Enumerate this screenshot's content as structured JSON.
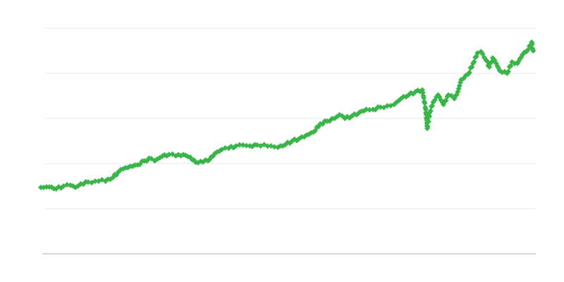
{
  "chart_data": {
    "type": "line",
    "title": "",
    "xlabel": "",
    "ylabel": "",
    "xlim": [
      0,
      100
    ],
    "ylim": [
      0,
      5
    ],
    "grid": true,
    "gridlines_y": [
      1,
      2,
      3,
      4,
      5
    ],
    "tick_labels_shown": false,
    "legend": "none",
    "marker": "diamond",
    "colors": {
      "series": "#39b54a",
      "grid": "#ebebeb",
      "axis": "#b3b3b3"
    },
    "series": [
      {
        "x": [
          0,
          1.7,
          3.1,
          4.6,
          6,
          7,
          8.1,
          9.6,
          11,
          12.4,
          13.1,
          14.6,
          15.7,
          16.7,
          18.1,
          19.6,
          21,
          22.4,
          23.1,
          24.6,
          26,
          27.4,
          28.9,
          30.3,
          31.4,
          32.4,
          33.9,
          35.3,
          36.7,
          38.1,
          39.6,
          41,
          42.4,
          43.9,
          45.3,
          46.7,
          48.1,
          49.6,
          51,
          52.4,
          53.9,
          55.3,
          56.7,
          58.1,
          59.6,
          60.6,
          61.7,
          63.1,
          64.6,
          66,
          67.4,
          68.9,
          70.3,
          71.7,
          73.1,
          74.6,
          76,
          77.4,
          78.1,
          78.4,
          78.9,
          79.6,
          80.6,
          81.7,
          82.7,
          83.9,
          84.6,
          85.3,
          86.7,
          87.7,
          88.6,
          89.3,
          90.3,
          91,
          91.7,
          92.4,
          93.1,
          94.6,
          95.6,
          96.7,
          97.7,
          98.9,
          99.6,
          99.9
        ],
        "y": [
          1.47,
          1.48,
          1.44,
          1.5,
          1.52,
          1.47,
          1.55,
          1.59,
          1.61,
          1.64,
          1.61,
          1.69,
          1.81,
          1.88,
          1.94,
          1.97,
          2.06,
          2.11,
          2.06,
          2.16,
          2.2,
          2.17,
          2.2,
          2.14,
          2.03,
          2.05,
          2.06,
          2.22,
          2.31,
          2.34,
          2.39,
          2.41,
          2.39,
          2.41,
          2.42,
          2.39,
          2.36,
          2.42,
          2.5,
          2.55,
          2.63,
          2.7,
          2.88,
          2.94,
          3.0,
          3.08,
          3.0,
          3.05,
          3.13,
          3.2,
          3.2,
          3.25,
          3.28,
          3.31,
          3.44,
          3.52,
          3.59,
          3.63,
          3.2,
          2.78,
          3.13,
          3.36,
          3.52,
          3.31,
          3.52,
          3.44,
          3.59,
          3.86,
          3.98,
          4.22,
          4.45,
          4.48,
          4.3,
          4.14,
          4.34,
          4.22,
          4.06,
          4.0,
          4.25,
          4.22,
          4.41,
          4.53,
          4.69,
          4.5
        ]
      }
    ]
  }
}
